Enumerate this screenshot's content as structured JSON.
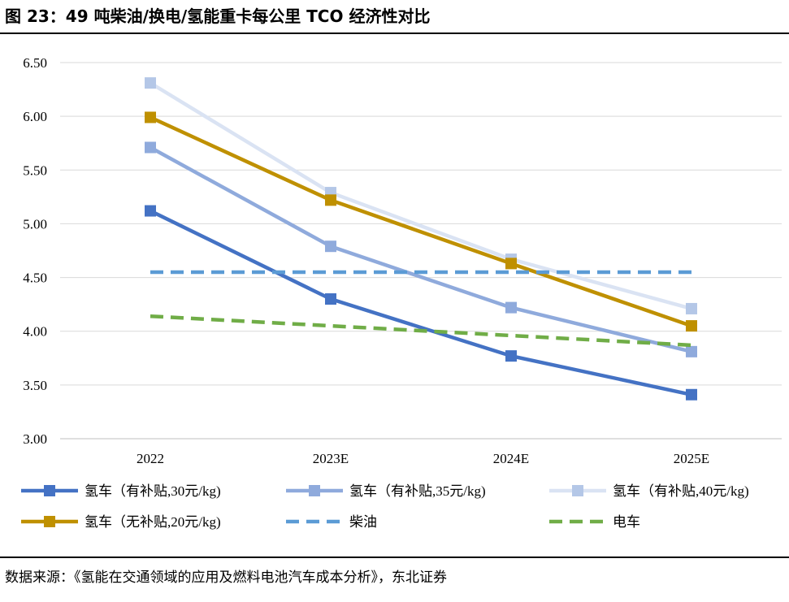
{
  "figure": {
    "title": "图 23：49 吨柴油/换电/氢能重卡每公里 TCO 经济性对比",
    "source": "数据来源：《氢能在交通领域的应用及燃料电池汽车成本分析》，东北证券"
  },
  "chart_data": {
    "type": "line",
    "categories": [
      "2022",
      "2023E",
      "2024E",
      "2025E"
    ],
    "ylim": [
      3.0,
      6.5
    ],
    "yticks": [
      "3.00",
      "3.50",
      "4.00",
      "4.50",
      "5.00",
      "5.50",
      "6.00",
      "6.50"
    ],
    "grid": true,
    "legend_position": "bottom",
    "series": [
      {
        "name": "氢车（有补贴,30元/kg)",
        "values": [
          5.12,
          4.3,
          3.77,
          3.41
        ],
        "color": "#4472c4",
        "style": "solid",
        "marker": "square"
      },
      {
        "name": "氢车（有补贴,35元/kg)",
        "values": [
          5.71,
          4.79,
          4.22,
          3.81
        ],
        "color": "#8faadc",
        "style": "solid",
        "marker": "square"
      },
      {
        "name": "氢车（有补贴,40元/kg)",
        "values": [
          6.31,
          5.29,
          4.67,
          4.21
        ],
        "color": "#dae3f3",
        "style": "solid",
        "marker": "square",
        "marker_color": "#b4c7e7"
      },
      {
        "name": "氢车（无补贴,20元/kg)",
        "values": [
          5.99,
          5.22,
          4.63,
          4.05
        ],
        "color": "#bf9000",
        "style": "solid",
        "marker": "square"
      },
      {
        "name": "柴油",
        "values": [
          4.55,
          4.55,
          4.55,
          4.55
        ],
        "color": "#5b9bd5",
        "style": "dashed",
        "marker": "none"
      },
      {
        "name": "电车",
        "values": [
          4.14,
          4.05,
          3.96,
          3.87
        ],
        "color": "#70ad47",
        "style": "dashed",
        "marker": "none"
      }
    ]
  }
}
